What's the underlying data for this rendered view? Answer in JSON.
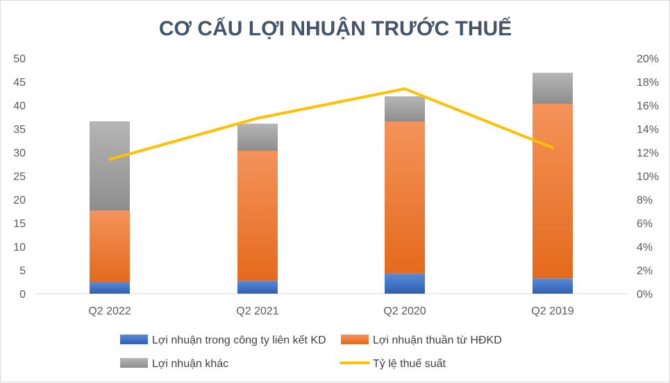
{
  "chart_data": {
    "type": "bar",
    "stacked": true,
    "title": "CƠ CẤU LỢI NHUẬN TRƯỚC THUẾ",
    "categories": [
      "Q2 2022",
      "Q2 2021",
      "Q2 2020",
      "Q2 2019"
    ],
    "series": [
      {
        "name": "Lợi nhuận trong công ty liên kết KD",
        "values": [
          2.5,
          2.7,
          4.3,
          3.2
        ],
        "color": "#4472c4"
      },
      {
        "name": "Lợi nhuận thuần từ HĐKD",
        "values": [
          15.1,
          27.6,
          32.2,
          37.1
        ],
        "color": "#ed7d31"
      },
      {
        "name": "Lợi nhuận khác",
        "values": [
          19.0,
          5.8,
          5.4,
          6.6
        ],
        "color": "#a5a5a5"
      }
    ],
    "line_series": {
      "name": "Tỷ lệ thuế suất",
      "axis": "secondary",
      "values": [
        11.4,
        14.9,
        17.4,
        12.4
      ],
      "color": "#ffc000"
    },
    "y_axis": {
      "ylim": [
        0,
        50
      ],
      "ticks": [
        "0",
        "5",
        "10",
        "15",
        "20",
        "25",
        "30",
        "35",
        "40",
        "45",
        "50"
      ]
    },
    "y2_axis": {
      "ylim": [
        0,
        20
      ],
      "ticks": [
        "0%",
        "2%",
        "4%",
        "6%",
        "8%",
        "10%",
        "12%",
        "14%",
        "16%",
        "18%",
        "20%"
      ]
    },
    "legend_position": "bottom",
    "grid": false
  }
}
